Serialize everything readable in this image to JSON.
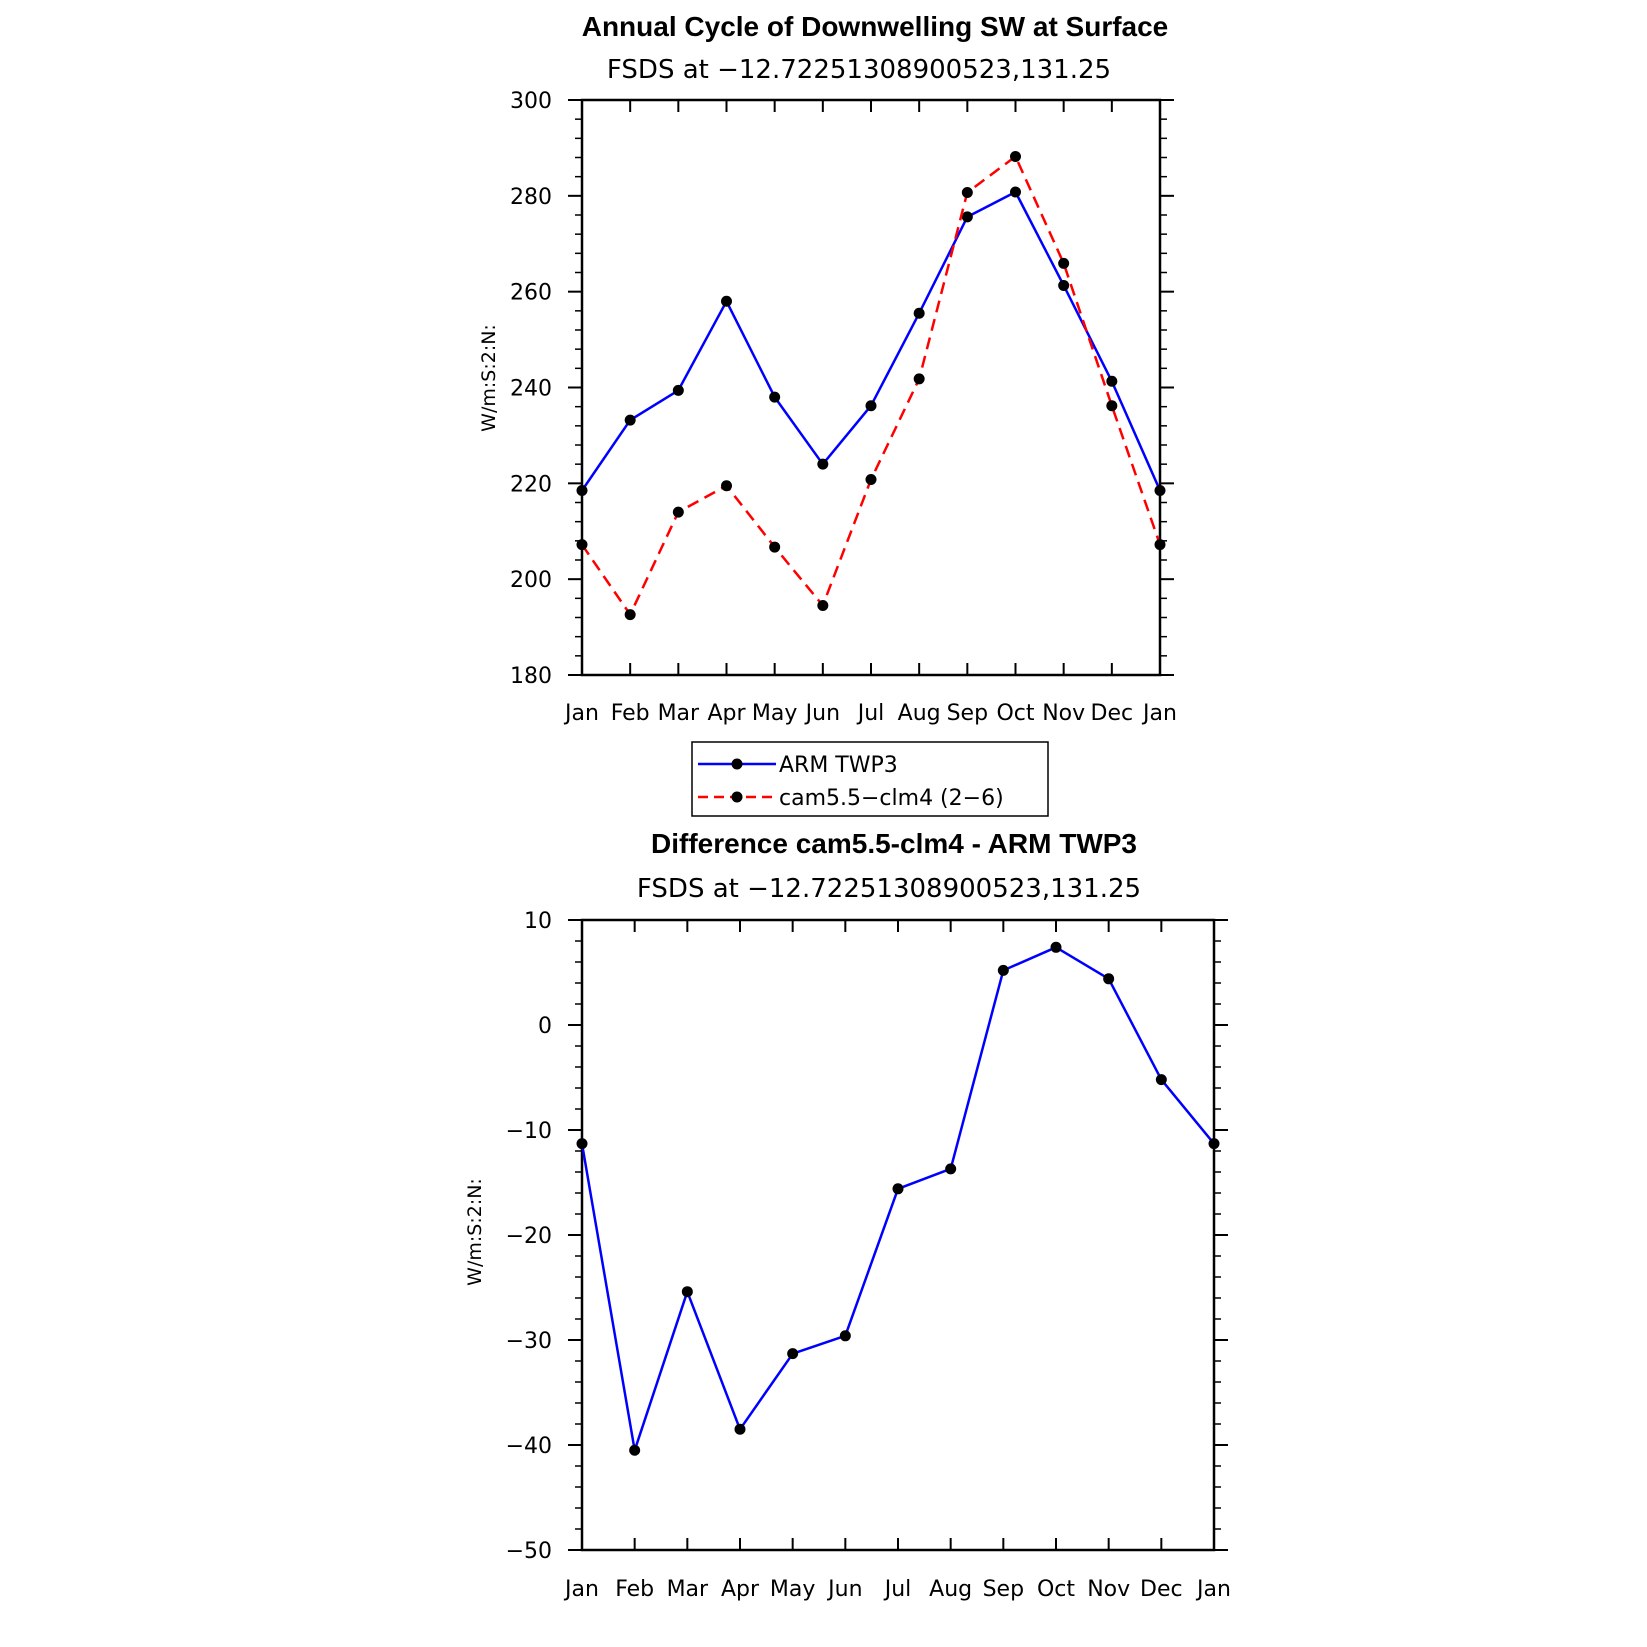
{
  "chart_data": [
    {
      "type": "line",
      "title": "Annual Cycle of Downwelling SW at Surface",
      "subtitle": "FSDS at −12.72251308900523,131.25",
      "ylabel": "W/m:S:2:N:",
      "xlabel": "",
      "categories": [
        "Jan",
        "Feb",
        "Mar",
        "Apr",
        "May",
        "Jun",
        "Jul",
        "Aug",
        "Sep",
        "Oct",
        "Nov",
        "Dec",
        "Jan"
      ],
      "ylim": [
        180,
        300
      ],
      "yticks": [
        180,
        200,
        220,
        240,
        260,
        280,
        300
      ],
      "ytick_labels": [
        "180",
        "200",
        "220",
        "240",
        "260",
        "280",
        "300"
      ],
      "series": [
        {
          "name": "ARM TWP3",
          "color": "#0000ff",
          "dash": "solid",
          "values": [
            218.5,
            233.2,
            239.4,
            258.0,
            238.0,
            224.0,
            236.2,
            255.5,
            275.6,
            280.8,
            261.3,
            241.3,
            218.5
          ]
        },
        {
          "name": "cam5.5−clm4 (2−6)",
          "color": "#ff0000",
          "dash": "dashed",
          "values": [
            207.2,
            192.6,
            214.0,
            219.5,
            206.7,
            194.5,
            220.8,
            241.8,
            280.7,
            288.2,
            265.9,
            236.2,
            207.2
          ]
        }
      ],
      "legend": [
        {
          "label": "ARM TWP3"
        },
        {
          "label": "cam5.5−clm4 (2−6)"
        }
      ],
      "legend_position": "below"
    },
    {
      "type": "line",
      "title": "Difference cam5.5-clm4 - ARM TWP3",
      "subtitle": "FSDS at −12.72251308900523,131.25",
      "ylabel": "W/m:S:2:N:",
      "xlabel": "",
      "categories": [
        "Jan",
        "Feb",
        "Mar",
        "Apr",
        "May",
        "Jun",
        "Jul",
        "Aug",
        "Sep",
        "Oct",
        "Nov",
        "Dec",
        "Jan"
      ],
      "ylim": [
        -50,
        10
      ],
      "yticks": [
        -50,
        -40,
        -30,
        -20,
        -10,
        0,
        10
      ],
      "ytick_labels": [
        "−50",
        "−40",
        "−30",
        "−20",
        "−10",
        "0",
        "10"
      ],
      "series": [
        {
          "name": "Difference",
          "color": "#0000ff",
          "dash": "solid",
          "values": [
            -11.3,
            -40.5,
            -25.4,
            -38.5,
            -31.3,
            -29.6,
            -15.6,
            -13.7,
            5.2,
            7.4,
            4.4,
            -5.2,
            -11.3
          ]
        }
      ]
    }
  ]
}
